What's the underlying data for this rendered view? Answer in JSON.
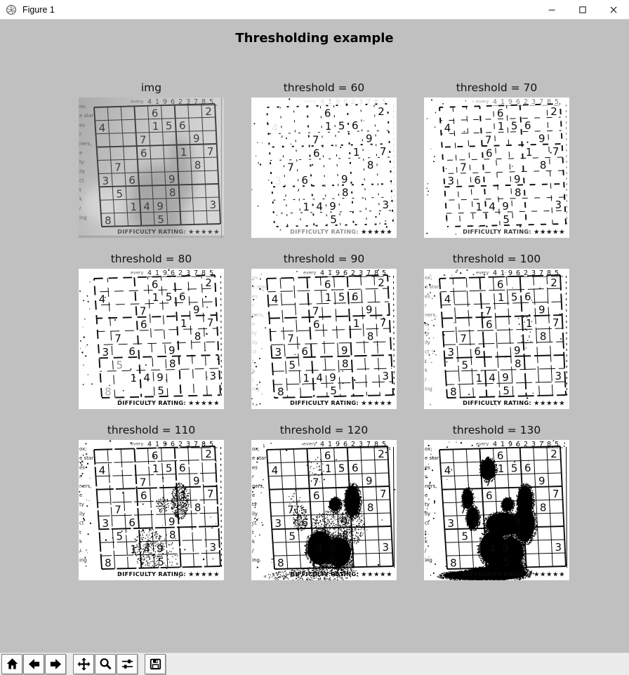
{
  "window": {
    "title": "Figure 1",
    "controls": [
      {
        "name": "minimize"
      },
      {
        "name": "maximize"
      },
      {
        "name": "close"
      }
    ]
  },
  "colors": {
    "figure_bg": "#c0c0c0",
    "titlebar_bg": "#ffffff",
    "toolbar_bg": "#ececec",
    "paper": "#ffffff",
    "ink": "#0b0b0b",
    "photo_ink": "#343434"
  },
  "figure": {
    "suptitle": "Thresholding example"
  },
  "panels": [
    {
      "title": "img",
      "kind": "grayscale"
    },
    {
      "title": "threshold = 60",
      "kind": "binary",
      "threshold": 60
    },
    {
      "title": "threshold = 70",
      "kind": "binary",
      "threshold": 70
    },
    {
      "title": "threshold = 80",
      "kind": "binary",
      "threshold": 80
    },
    {
      "title": "threshold = 90",
      "kind": "binary",
      "threshold": 90
    },
    {
      "title": "threshold = 100",
      "kind": "binary",
      "threshold": 100
    },
    {
      "title": "threshold = 110",
      "kind": "binary",
      "threshold": 110
    },
    {
      "title": "threshold = 120",
      "kind": "binary",
      "threshold": 120
    },
    {
      "title": "threshold = 130",
      "kind": "binary",
      "threshold": 130
    }
  ],
  "sudoku": {
    "top_fragment": "every",
    "top_digits": [
      "4",
      "1",
      "9",
      "6",
      "2",
      "3",
      "7",
      "8",
      "5"
    ],
    "grid": [
      "....6...2",
      "4...156..",
      "...7...9.",
      "...6..1.7",
      ".7.....8.",
      "3.6..9...",
      ".5...8...",
      "..149...3",
      "8...5...."
    ],
    "margin_text": [
      "ox;",
      "e star",
      "es",
      "r",
      "ners,",
      "e",
      "ty",
      "ily",
      "ct",
      "t",
      "k",
      "/",
      "ing"
    ],
    "footer": "DIFFICULTY RATING:",
    "stars": "★★★★★"
  },
  "toolbar": {
    "groups": [
      [
        {
          "name": "home"
        },
        {
          "name": "back"
        },
        {
          "name": "forward"
        }
      ],
      [
        {
          "name": "pan"
        },
        {
          "name": "zoom"
        },
        {
          "name": "configure-subplots"
        }
      ],
      [
        {
          "name": "save"
        }
      ]
    ]
  }
}
